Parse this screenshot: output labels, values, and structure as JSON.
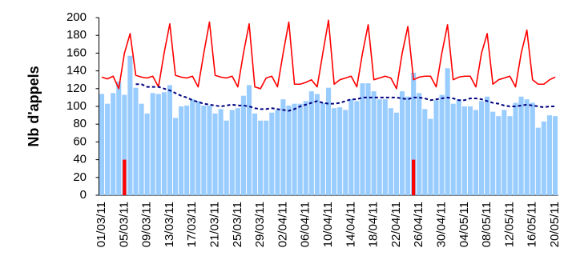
{
  "chart_data": {
    "type": "bar",
    "y_label": "Nb d'appels",
    "categories": [
      "01/03/11",
      null,
      null,
      null,
      "05/03/11",
      null,
      null,
      null,
      "09/03/11",
      null,
      null,
      null,
      "13/03/11",
      null,
      null,
      null,
      "17/03/11",
      null,
      null,
      null,
      "21/03/11",
      null,
      null,
      null,
      "25/03/11",
      null,
      null,
      null,
      "29/03/11",
      null,
      null,
      null,
      "02/04/11",
      null,
      null,
      null,
      "06/04/11",
      null,
      null,
      null,
      "10/04/11",
      null,
      null,
      null,
      "14/04/11",
      null,
      null,
      null,
      "18/04/11",
      null,
      null,
      null,
      "22/04/11",
      null,
      null,
      null,
      "26/04/11",
      null,
      null,
      null,
      "30/04/11",
      null,
      null,
      null,
      "04/05/11",
      null,
      null,
      null,
      "08/05/11",
      null,
      null,
      null,
      "12/05/11",
      null,
      null,
      null,
      "16/05/11",
      null,
      null,
      null,
      "20/05/11"
    ],
    "series": [
      {
        "style": "bar",
        "color": "#99ccff",
        "values": [
          114,
          103,
          115,
          128,
          113,
          157,
          121,
          103,
          92,
          115,
          114,
          116,
          124,
          87,
          100,
          101,
          108,
          106,
          101,
          101,
          92,
          97,
          84,
          96,
          98,
          112,
          124,
          92,
          84,
          84,
          93,
          96,
          108,
          101,
          103,
          103,
          106,
          117,
          114,
          104,
          121,
          98,
          99,
          96,
          108,
          106,
          126,
          126,
          117,
          108,
          108,
          98,
          93,
          117,
          111,
          138,
          115,
          97,
          86,
          107,
          113,
          143,
          103,
          108,
          100,
          100,
          96,
          106,
          111,
          94,
          89,
          96,
          89,
          104,
          111,
          108,
          104,
          76,
          83,
          90,
          89
        ]
      },
      {
        "style": "line",
        "color": "#ff0000",
        "values": [
          133,
          131,
          134,
          120,
          160,
          182,
          135,
          133,
          132,
          134,
          122,
          160,
          193,
          135,
          133,
          132,
          134,
          122,
          160,
          195,
          135,
          133,
          132,
          134,
          122,
          160,
          193,
          122,
          120,
          132,
          134,
          122,
          160,
          195,
          125,
          125,
          127,
          130,
          122,
          160,
          197,
          125,
          130,
          132,
          134,
          122,
          160,
          192,
          130,
          132,
          134,
          132,
          120,
          160,
          190,
          130,
          133,
          134,
          134,
          122,
          160,
          192,
          130,
          133,
          134,
          134,
          122,
          160,
          182,
          125,
          130,
          132,
          134,
          122,
          160,
          186,
          130,
          125,
          125,
          130,
          133
        ]
      },
      {
        "style": "dashed",
        "color": "#000080",
        "values": [
          null,
          null,
          null,
          null,
          null,
          null,
          125,
          125,
          122,
          122,
          122,
          120,
          118,
          115,
          112,
          110,
          107,
          105,
          103,
          102,
          101,
          100,
          101,
          102,
          101,
          101,
          100,
          98,
          97,
          97,
          98,
          97,
          96,
          95,
          97,
          100,
          102,
          104,
          106,
          104,
          103,
          103,
          104,
          106,
          108,
          108,
          110,
          110,
          110,
          110,
          110,
          110,
          110,
          109,
          108,
          110,
          110,
          109,
          107,
          108,
          109,
          110,
          109,
          107,
          107,
          109,
          109,
          108,
          106,
          104,
          103,
          101,
          100,
          100,
          101,
          102,
          101,
          100,
          99,
          100,
          100
        ]
      },
      {
        "style": "bar",
        "color": "#ff0000",
        "values": [
          null,
          null,
          null,
          null,
          40,
          null,
          null,
          null,
          null,
          null,
          null,
          null,
          null,
          null,
          null,
          null,
          null,
          null,
          null,
          null,
          null,
          null,
          null,
          null,
          null,
          null,
          null,
          null,
          null,
          null,
          null,
          null,
          null,
          null,
          null,
          null,
          null,
          null,
          null,
          null,
          null,
          null,
          null,
          null,
          null,
          null,
          null,
          null,
          null,
          null,
          null,
          null,
          null,
          null,
          null,
          40,
          null,
          null,
          null,
          null,
          null,
          null,
          null,
          null,
          null,
          null,
          null,
          null,
          null,
          null,
          null,
          null,
          null,
          null,
          null,
          null,
          null,
          null,
          null,
          null,
          null
        ]
      }
    ],
    "ylim": [
      0,
      200
    ],
    "yticks": [
      0,
      20,
      40,
      60,
      80,
      100,
      120,
      140,
      160,
      180,
      200
    ]
  }
}
